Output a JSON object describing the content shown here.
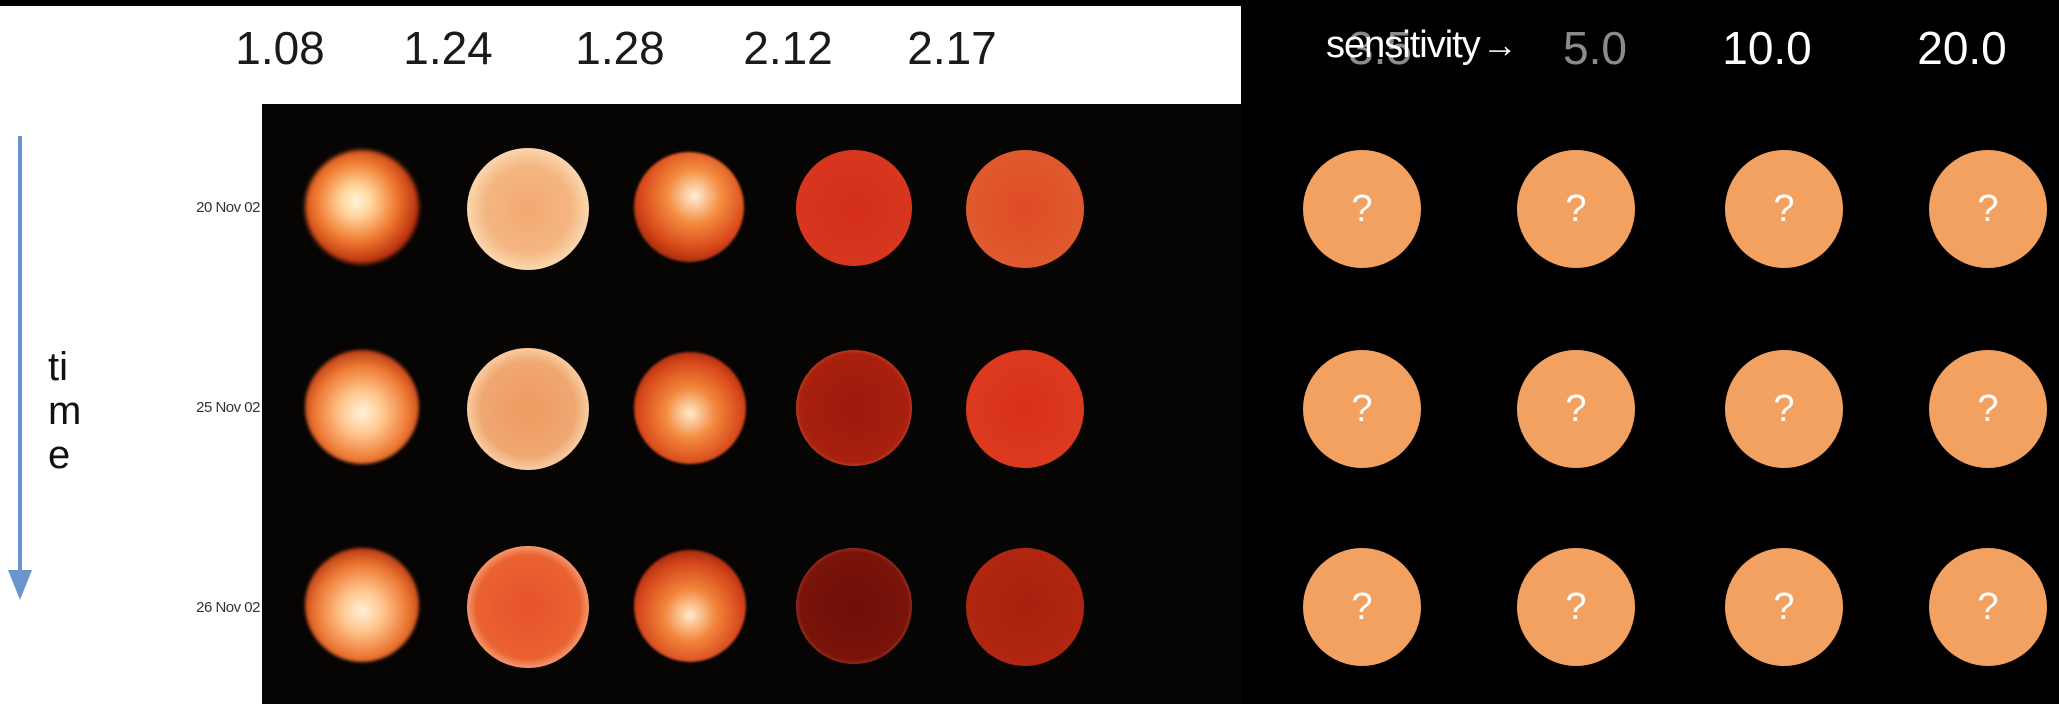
{
  "columns": {
    "observed": [
      "1.08",
      "1.24",
      "1.28",
      "2.12",
      "2.17"
    ],
    "unknown": [
      "3.5",
      "5.0",
      "10.0",
      "20.0"
    ]
  },
  "header": {
    "sensitivity_label": "sensitivity"
  },
  "rows": [
    "20 Nov 02",
    "25 Nov 02",
    "26 Nov 02"
  ],
  "time_axis": {
    "letters": [
      "ti",
      "m",
      "e"
    ],
    "arrow_color": "#6a96d0"
  },
  "placeholder": {
    "glyph": "?",
    "color": "#f3a161"
  },
  "icons": {
    "direction": "right-arrow-icon"
  }
}
